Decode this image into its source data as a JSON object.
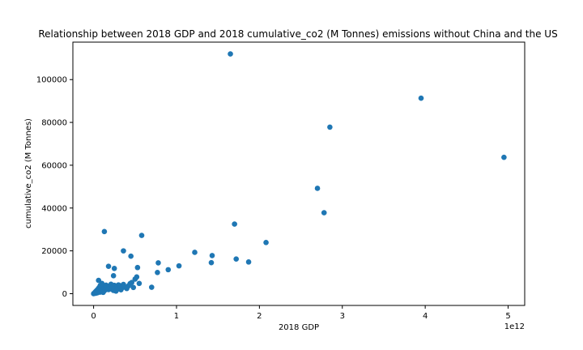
{
  "chart_data": {
    "type": "scatter",
    "title": "Relationship between 2018 GDP and 2018 cumulative_co2 (M Tonnes) emissions without China and the US",
    "xlabel": "2018 GDP",
    "ylabel": "cumulative_co2 (M Tonnes)",
    "x_offset_label": "1e12",
    "x_scale": 1000000000000.0,
    "xlim": [
      -0.25,
      5.2
    ],
    "ylim": [
      -5500,
      117500
    ],
    "x_ticks": [
      0,
      1,
      2,
      3,
      4,
      5
    ],
    "y_ticks": [
      0,
      20000,
      40000,
      60000,
      80000,
      100000
    ],
    "point_color": "#1f77b4",
    "grid": false,
    "legend": "none",
    "points": [
      [
        0.0,
        0
      ],
      [
        0.005,
        120
      ],
      [
        0.01,
        300
      ],
      [
        0.015,
        500
      ],
      [
        0.02,
        800
      ],
      [
        0.025,
        200
      ],
      [
        0.03,
        1200
      ],
      [
        0.035,
        600
      ],
      [
        0.04,
        1600
      ],
      [
        0.045,
        400
      ],
      [
        0.05,
        2000
      ],
      [
        0.055,
        900
      ],
      [
        0.06,
        2500
      ],
      [
        0.065,
        1400
      ],
      [
        0.07,
        3000
      ],
      [
        0.075,
        700
      ],
      [
        0.08,
        3800
      ],
      [
        0.085,
        1800
      ],
      [
        0.09,
        2200
      ],
      [
        0.095,
        1000
      ],
      [
        0.1,
        2800
      ],
      [
        0.105,
        1500
      ],
      [
        0.11,
        3300
      ],
      [
        0.115,
        600
      ],
      [
        0.12,
        2000
      ],
      [
        0.125,
        1200
      ],
      [
        0.13,
        2600
      ],
      [
        0.135,
        3600
      ],
      [
        0.14,
        1700
      ],
      [
        0.145,
        2900
      ],
      [
        0.15,
        4000
      ],
      [
        0.16,
        2300
      ],
      [
        0.17,
        3100
      ],
      [
        0.18,
        1900
      ],
      [
        0.19,
        3500
      ],
      [
        0.2,
        2700
      ],
      [
        0.21,
        4400
      ],
      [
        0.22,
        2100
      ],
      [
        0.23,
        3200
      ],
      [
        0.24,
        1500
      ],
      [
        0.25,
        3900
      ],
      [
        0.26,
        2500
      ],
      [
        0.27,
        1200
      ],
      [
        0.28,
        3400
      ],
      [
        0.29,
        2800
      ],
      [
        0.3,
        4100
      ],
      [
        0.31,
        2200
      ],
      [
        0.32,
        3700
      ],
      [
        0.33,
        1800
      ],
      [
        0.34,
        2600
      ],
      [
        0.36,
        4300
      ],
      [
        0.38,
        3000
      ],
      [
        0.4,
        2400
      ],
      [
        0.42,
        3600
      ],
      [
        0.44,
        4700
      ],
      [
        0.46,
        5200
      ],
      [
        0.48,
        2900
      ],
      [
        0.5,
        6800
      ],
      [
        0.52,
        7800
      ],
      [
        0.06,
        6200
      ],
      [
        0.1,
        4800
      ],
      [
        0.13,
        29000
      ],
      [
        0.18,
        12800
      ],
      [
        0.24,
        8400
      ],
      [
        0.25,
        11800
      ],
      [
        0.36,
        20000
      ],
      [
        0.45,
        17500
      ],
      [
        0.53,
        12200
      ],
      [
        0.55,
        4800
      ],
      [
        0.58,
        27200
      ],
      [
        0.7,
        3000
      ],
      [
        0.77,
        9900
      ],
      [
        0.78,
        14400
      ],
      [
        0.9,
        11200
      ],
      [
        1.03,
        13000
      ],
      [
        1.22,
        19300
      ],
      [
        1.42,
        14500
      ],
      [
        1.43,
        17800
      ],
      [
        1.65,
        112000
      ],
      [
        1.7,
        32500
      ],
      [
        1.72,
        16200
      ],
      [
        1.87,
        14800
      ],
      [
        2.08,
        23900
      ],
      [
        2.7,
        49200
      ],
      [
        2.78,
        37800
      ],
      [
        2.85,
        77800
      ],
      [
        3.95,
        91300
      ],
      [
        4.95,
        63700
      ]
    ]
  }
}
